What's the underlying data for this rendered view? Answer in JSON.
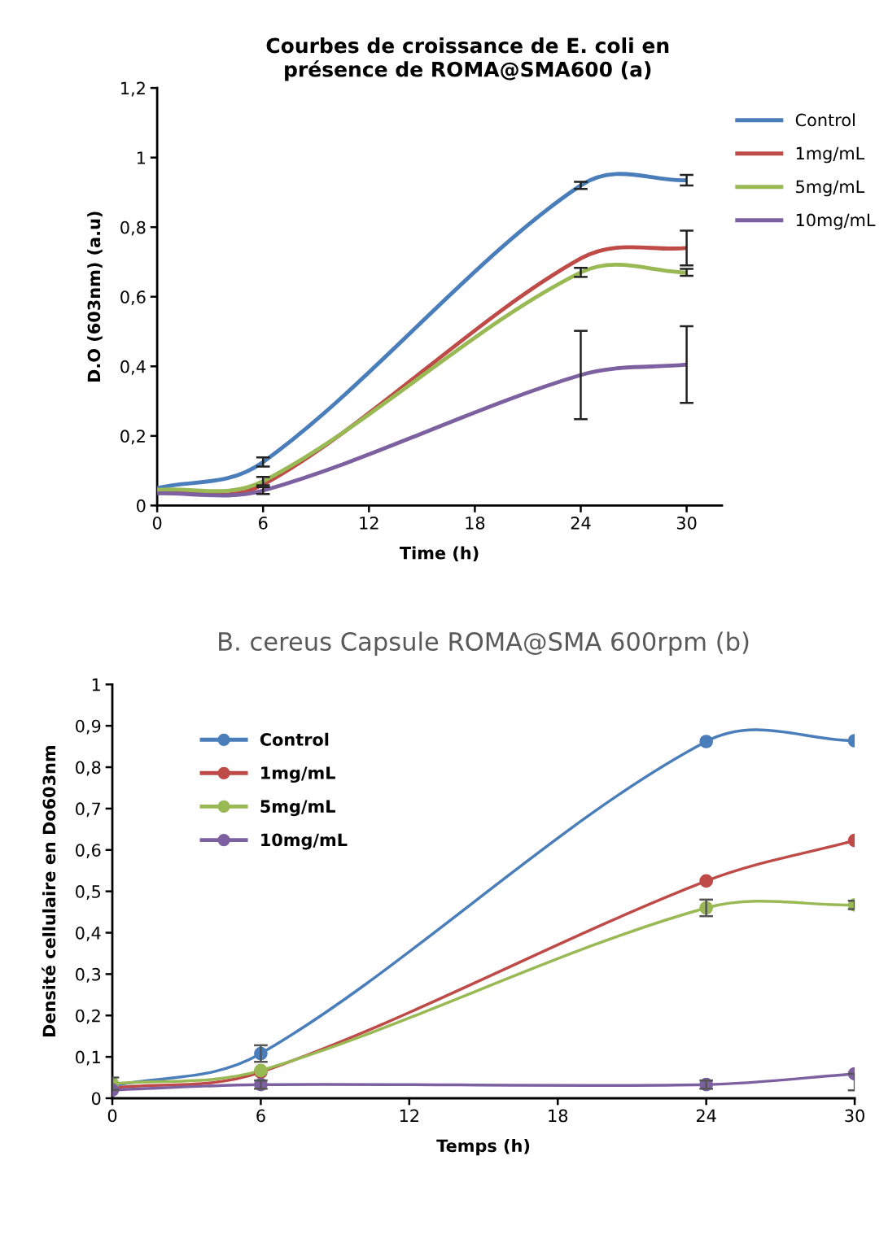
{
  "chart_data": [
    {
      "type": "line",
      "title": "Courbes de croissance de E. coli en présence de ROMA@SMA600 (a)",
      "xlabel": "Time (h)",
      "ylabel": "D.O (603nm) (a.u)",
      "x": [
        0,
        6,
        24,
        30
      ],
      "xlim": [
        0,
        32
      ],
      "xticks": [
        0,
        6,
        12,
        18,
        24,
        30
      ],
      "ylim": [
        0,
        1.2
      ],
      "yticks": [
        {
          "value": 0,
          "label": "0"
        },
        {
          "value": 0.2,
          "label": "0,2"
        },
        {
          "value": 0.4,
          "label": "0,4"
        },
        {
          "value": 0.6,
          "label": "0,6"
        },
        {
          "value": 0.8,
          "label": "0,8"
        },
        {
          "value": 1,
          "label": "1"
        },
        {
          "value": 1.2,
          "label": "1,2"
        }
      ],
      "grid": false,
      "legend": "right",
      "marker": "none",
      "line_style": "solid",
      "series": [
        {
          "name": "Control",
          "color": "#4a7ebb",
          "values": [
            0.05,
            0.125,
            0.92,
            0.935
          ],
          "errors": [
            null,
            0.013,
            0.01,
            0.015
          ]
        },
        {
          "name": "1mg/mL",
          "color": "#be4b48",
          "values": [
            0.04,
            0.06,
            0.71,
            0.74
          ],
          "errors": [
            null,
            null,
            null,
            0.05
          ]
        },
        {
          "name": "5mg/mL",
          "color": "#98b954",
          "values": [
            0.045,
            0.07,
            0.67,
            0.67
          ],
          "errors": [
            null,
            0.012,
            0.013,
            0.01
          ]
        },
        {
          "name": "10mg/mL",
          "color": "#7d60a0",
          "values": [
            0.035,
            0.043,
            0.375,
            0.405
          ],
          "errors": [
            null,
            0.01,
            0.127,
            0.11
          ]
        }
      ]
    },
    {
      "type": "line",
      "title": "B. cereus Capsule ROMA@SMA 600rpm (b)",
      "xlabel": "Temps (h)",
      "ylabel": "Densité cellulaire en Do603nm",
      "x": [
        0,
        6,
        24,
        30
      ],
      "xlim": [
        0,
        30
      ],
      "xticks": [
        0,
        6,
        12,
        18,
        24,
        30
      ],
      "ylim": [
        0,
        1
      ],
      "yticks": [
        {
          "value": 0,
          "label": "0"
        },
        {
          "value": 0.1,
          "label": "0,1"
        },
        {
          "value": 0.2,
          "label": "0,2"
        },
        {
          "value": 0.3,
          "label": "0,3"
        },
        {
          "value": 0.4,
          "label": "0,4"
        },
        {
          "value": 0.5,
          "label": "0,5"
        },
        {
          "value": 0.6,
          "label": "0,6"
        },
        {
          "value": 0.7,
          "label": "0,7"
        },
        {
          "value": 0.8,
          "label": "0,8"
        },
        {
          "value": 0.9,
          "label": "0,9"
        },
        {
          "value": 1,
          "label": "1"
        }
      ],
      "grid": false,
      "legend": "top left",
      "marker": "circle",
      "line_style": "solid",
      "series": [
        {
          "name": "Control",
          "color": "#4a7ebb",
          "values": [
            0.03,
            0.108,
            0.862,
            0.864
          ],
          "errors": [
            null,
            0.02,
            null,
            null
          ]
        },
        {
          "name": "1mg/mL",
          "color": "#be4b48",
          "values": [
            0.025,
            0.063,
            0.525,
            0.623
          ],
          "errors": [
            null,
            null,
            null,
            null
          ]
        },
        {
          "name": "5mg/mL",
          "color": "#98b954",
          "values": [
            0.035,
            0.067,
            0.46,
            0.467
          ],
          "errors": [
            0.015,
            null,
            0.02,
            0.01
          ]
        },
        {
          "name": "10mg/mL",
          "color": "#7d60a0",
          "values": [
            0.02,
            0.033,
            0.033,
            0.059
          ],
          "errors": [
            null,
            0.01,
            0.01,
            [
              0.019,
              0.059
            ]
          ]
        }
      ]
    }
  ]
}
